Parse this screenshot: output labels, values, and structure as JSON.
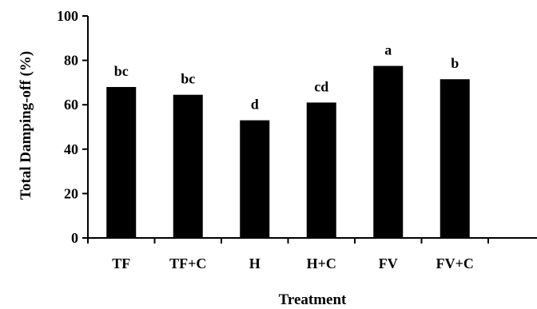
{
  "chart_data": {
    "type": "bar",
    "categories": [
      "TF",
      "TF+C",
      "H",
      "H+C",
      "FV",
      "FV+C"
    ],
    "values": [
      68,
      64.5,
      53,
      61,
      77.5,
      71.5
    ],
    "letters": [
      "bc",
      "bc",
      "d",
      "cd",
      "a",
      "b"
    ],
    "xlabel": "Treatment",
    "ylabel": "Total Damping-off (%)",
    "ylim": [
      0,
      100
    ],
    "yticks": [
      0,
      20,
      40,
      60,
      80,
      100
    ],
    "bar_color": "#000000",
    "grid": false,
    "legend": "none"
  }
}
